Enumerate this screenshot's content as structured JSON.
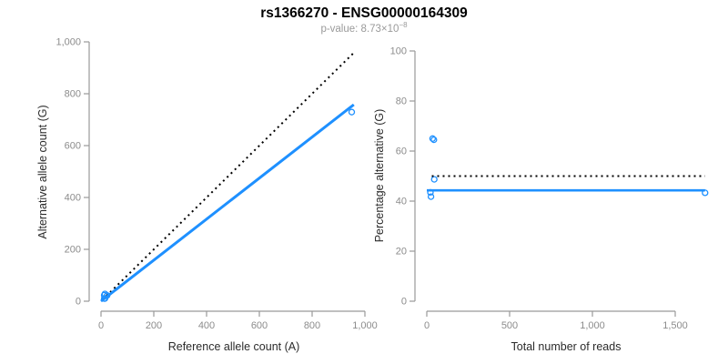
{
  "figure": {
    "title": "rs1366270 - ENSG00000164309",
    "subtitle_prefix": "p-value: 8.73×10",
    "subtitle_exponent": "−8"
  },
  "colors": {
    "accent": "#1E90FF",
    "axis": "#999999",
    "tick_label": "#8c8c8c",
    "axis_label": "#2b2b2b",
    "dotted": "#000000"
  },
  "chart_data": [
    {
      "type": "scatter",
      "panel": "allele-counts",
      "xlabel": "Reference allele count (A)",
      "ylabel": "Alternative allele count (G)",
      "xlim": [
        0,
        1000
      ],
      "ylim": [
        0,
        1000
      ],
      "xticks": [
        0,
        200,
        400,
        600,
        800,
        1000
      ],
      "xtick_labels": [
        "0",
        "200",
        "400",
        "600",
        "800",
        "1,000"
      ],
      "yticks": [
        0,
        200,
        400,
        600,
        800,
        1000
      ],
      "ytick_labels": [
        "0",
        "200",
        "400",
        "600",
        "800",
        "1,000"
      ],
      "grid": false,
      "legend": null,
      "points": [
        [
          12,
          23
        ],
        [
          15,
          28
        ],
        [
          23,
          22
        ],
        [
          12,
          10
        ],
        [
          15,
          10
        ],
        [
          950,
          729
        ]
      ],
      "lines": [
        {
          "name": "identity-line",
          "style": "dotted",
          "color": "#000000",
          "width": 2,
          "from": [
            5,
            5
          ],
          "to": [
            960,
            960
          ]
        },
        {
          "name": "fit-line",
          "style": "solid",
          "color": "#1E90FF",
          "width": 3,
          "from": [
            0,
            0
          ],
          "to": [
            958,
            758
          ]
        }
      ]
    },
    {
      "type": "scatter",
      "panel": "percentage-vs-reads",
      "xlabel": "Total number of reads",
      "ylabel": "Percentage alternative (G)",
      "xlim": [
        0,
        1700
      ],
      "ylim": [
        0,
        100
      ],
      "xticks": [
        0,
        500,
        1000,
        1500
      ],
      "xtick_labels": [
        "0",
        "500",
        "1,000",
        "1,500"
      ],
      "yticks": [
        0,
        20,
        40,
        60,
        80,
        100
      ],
      "ytick_labels": [
        "0",
        "20",
        "40",
        "60",
        "80",
        "100"
      ],
      "grid": false,
      "legend": null,
      "points": [
        [
          35,
          65
        ],
        [
          43,
          64.5
        ],
        [
          45,
          48.7
        ],
        [
          22,
          43.5
        ],
        [
          25,
          41.8
        ],
        [
          1680,
          43.3
        ]
      ],
      "lines": [
        {
          "name": "expected-percentage-line",
          "style": "dotted",
          "color": "#000000",
          "width": 2,
          "from": [
            30,
            50
          ],
          "to": [
            1680,
            50
          ]
        },
        {
          "name": "mean-percentage-line",
          "style": "solid",
          "color": "#1E90FF",
          "width": 2.6,
          "from": [
            0,
            44.3
          ],
          "to": [
            1680,
            44.3
          ]
        }
      ]
    }
  ]
}
